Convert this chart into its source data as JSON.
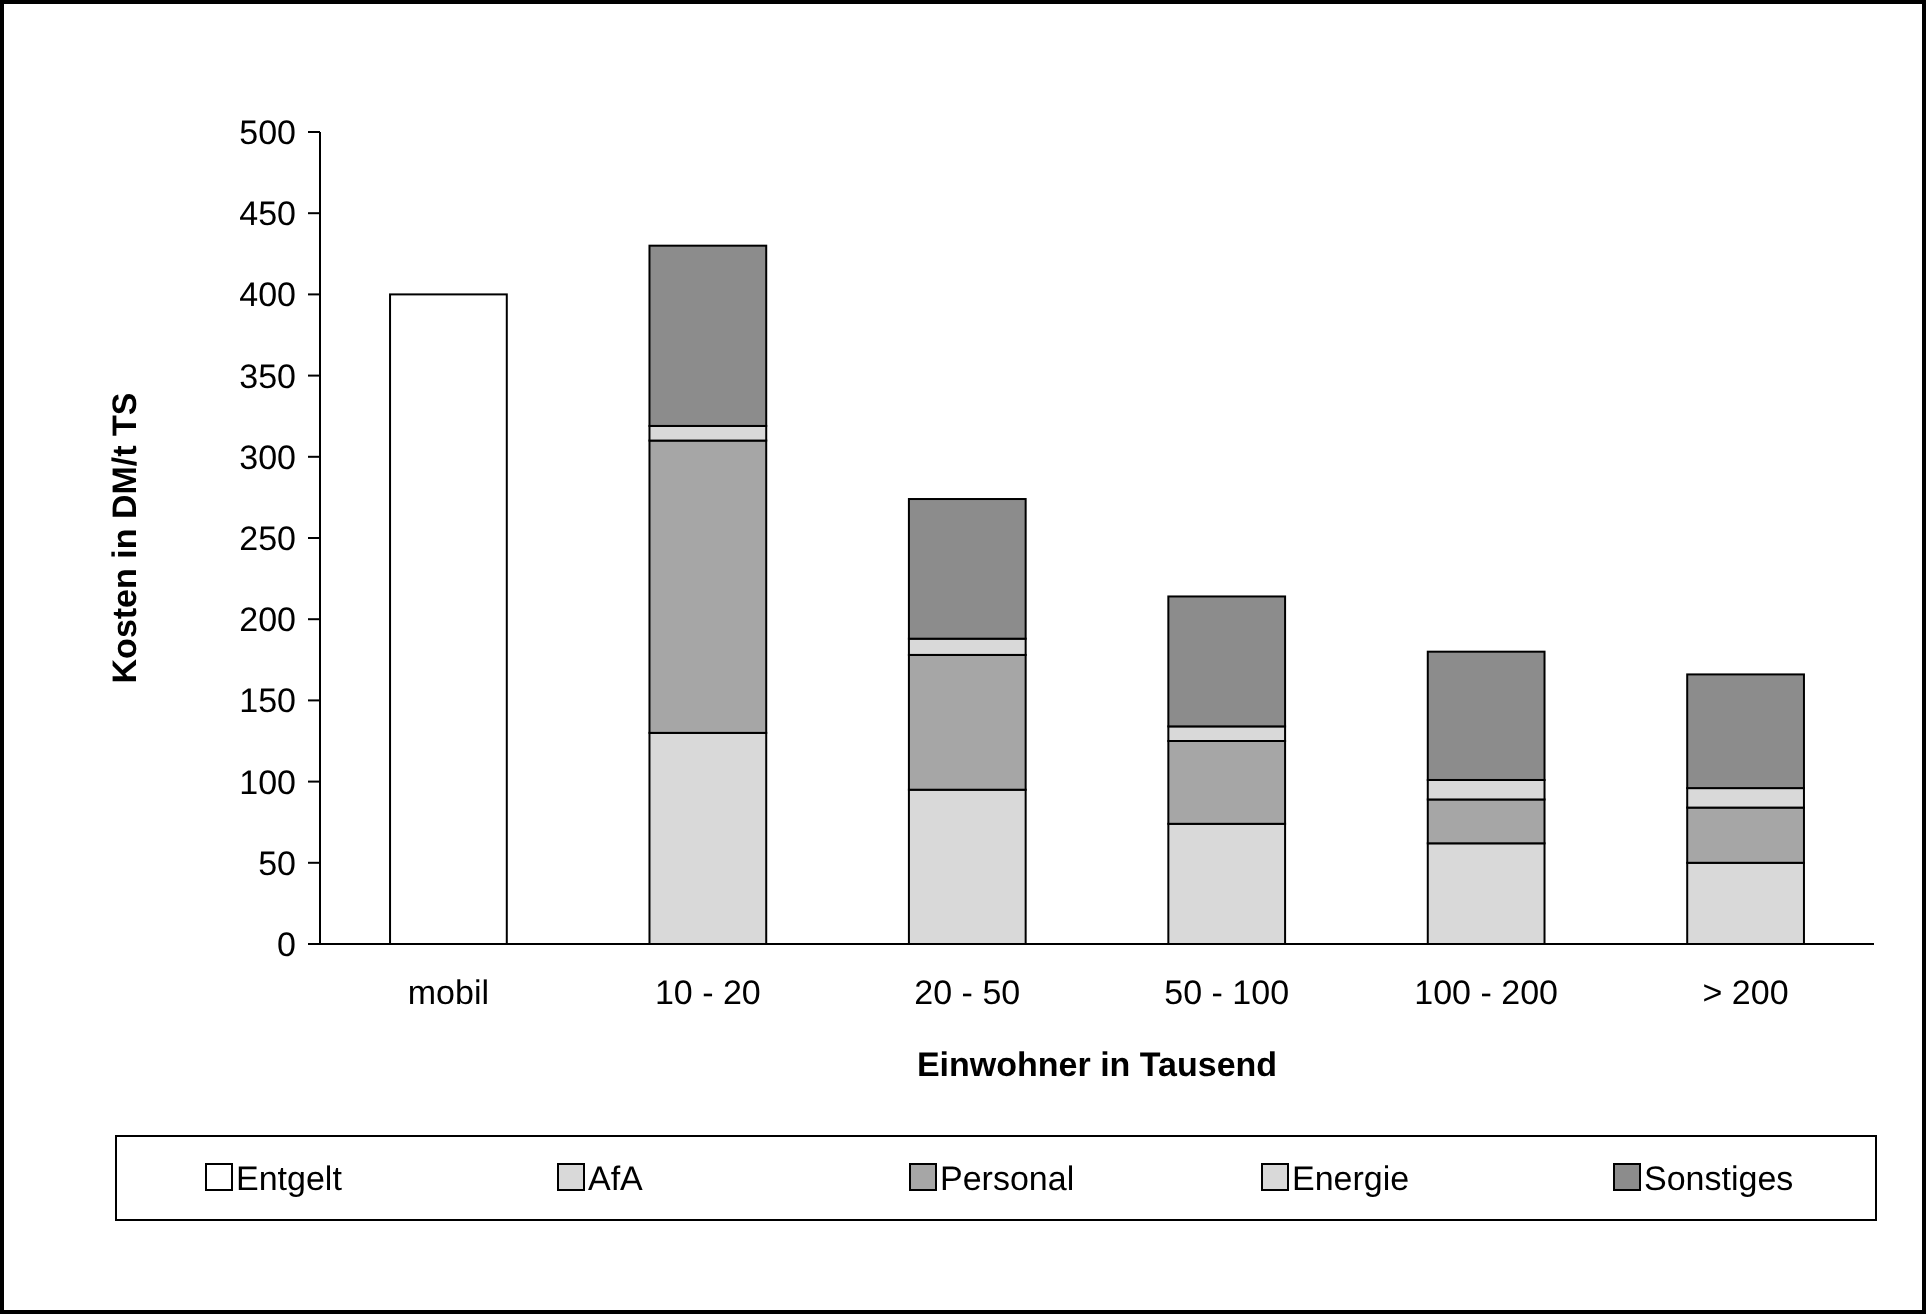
{
  "chart_data": {
    "type": "bar",
    "stacked": true,
    "xlabel": "Einwohner in Tausend",
    "ylabel": "Kosten in DM/t TS",
    "categories": [
      "mobil",
      "10 - 20",
      "20 - 50",
      "50 - 100",
      "100 - 200",
      "> 200"
    ],
    "series": [
      {
        "name": "Entgelt",
        "color": "#ffffff",
        "values": [
          400,
          null,
          null,
          null,
          null,
          null
        ]
      },
      {
        "name": "AfA",
        "color": "#d9d9d9",
        "values": [
          null,
          130,
          95,
          74,
          62,
          50
        ]
      },
      {
        "name": "Personal",
        "color": "#a6a6a6",
        "values": [
          null,
          180,
          83,
          51,
          27,
          34
        ]
      },
      {
        "name": "Energie",
        "color": "#d9d9d9",
        "values": [
          null,
          9,
          10,
          9,
          12,
          12
        ]
      },
      {
        "name": "Sonstiges",
        "color": "#8c8c8c",
        "values": [
          null,
          111,
          86,
          80,
          79,
          70
        ]
      }
    ],
    "ylim": [
      0,
      500
    ],
    "yticks": [
      0,
      50,
      100,
      150,
      200,
      250,
      300,
      350,
      400,
      450,
      500
    ],
    "grid": false,
    "legend": "bottom"
  }
}
